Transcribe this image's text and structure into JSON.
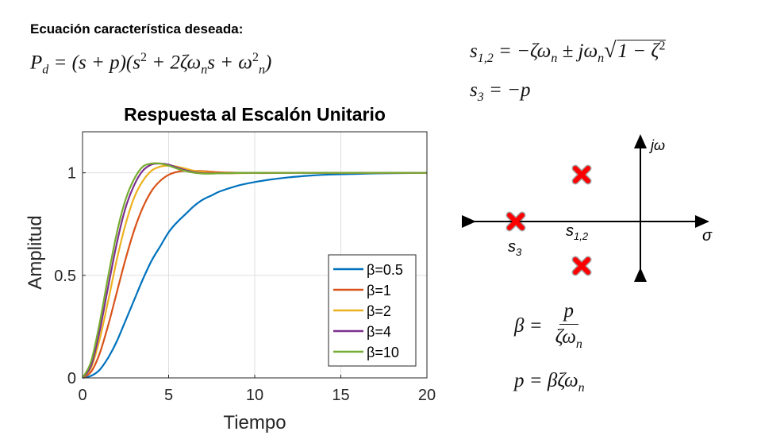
{
  "heading": "Ecuación característica deseada:",
  "equations": {
    "pd_lhs": "P",
    "pd_sub": "d",
    "pd_rhs": " = (s + p)(s",
    "pd_rhs2": " + 2ζω",
    "pd_rhs3": "s + ω",
    "pd_close": ")",
    "s12_lhs": "s",
    "s12_sub": "1,2",
    "s12_rhs": " = −ζω",
    "s12_rhs2": " ± jω",
    "s12_sqrt": "1 − ζ",
    "s3_lhs": "s",
    "s3_sub": "3",
    "s3_rhs": " = −p",
    "beta_lhs": "β =",
    "beta_num": "p",
    "beta_den": "ζω",
    "p_eq": "p = βζω",
    "sup2": "2",
    "sub_n": "n"
  },
  "pole_zero": {
    "jw_label": "jω",
    "sigma_label": "σ",
    "s3_label": "s",
    "s3_sub": "3",
    "s12_label": "s",
    "s12_sub": "1,2",
    "marker_color": "#ff0000"
  },
  "chart_data": {
    "type": "line",
    "title": "Respuesta al Escalón Unitario",
    "xlabel": "Tiempo",
    "ylabel": "Amplitud",
    "xlim": [
      0,
      20
    ],
    "ylim": [
      0,
      1.2
    ],
    "xticks": [
      0,
      5,
      10,
      15,
      20
    ],
    "yticks": [
      0,
      0.5,
      1
    ],
    "ytick_labels": [
      "0",
      "0.5",
      "1"
    ],
    "grid": true,
    "legend_position": "lower-right",
    "x": [
      0,
      0.5,
      1,
      1.5,
      2,
      2.5,
      3,
      3.5,
      4,
      4.5,
      5,
      5.5,
      6,
      6.5,
      7,
      7.5,
      8,
      9,
      10,
      11,
      12,
      13,
      14,
      15,
      16,
      17,
      18,
      19,
      20
    ],
    "series": [
      {
        "name": "β=0.5",
        "color": "#0072BD",
        "values": [
          0,
          0.01,
          0.04,
          0.1,
          0.18,
          0.28,
          0.38,
          0.48,
          0.57,
          0.64,
          0.71,
          0.76,
          0.8,
          0.84,
          0.87,
          0.89,
          0.91,
          0.937,
          0.955,
          0.968,
          0.978,
          0.985,
          0.99,
          0.993,
          0.995,
          0.997,
          0.998,
          0.999,
          1.0
        ]
      },
      {
        "name": "β=1",
        "color": "#D95319",
        "values": [
          0,
          0.03,
          0.12,
          0.26,
          0.42,
          0.58,
          0.72,
          0.83,
          0.91,
          0.96,
          0.99,
          1.005,
          1.01,
          1.01,
          1.008,
          1.005,
          1.002,
          1.0,
          0.999,
          0.999,
          1.0,
          1.0,
          1.0,
          1.0,
          1.0,
          1.0,
          1.0,
          1.0,
          1.0
        ]
      },
      {
        "name": "β=2",
        "color": "#EDB120",
        "values": [
          0,
          0.05,
          0.19,
          0.38,
          0.58,
          0.75,
          0.88,
          0.96,
          1.01,
          1.03,
          1.035,
          1.03,
          1.02,
          1.01,
          1.004,
          1.0,
          0.998,
          0.998,
          0.999,
          1.0,
          1.0,
          1.0,
          1.0,
          1.0,
          1.0,
          1.0,
          1.0,
          1.0,
          1.0
        ]
      },
      {
        "name": "β=4",
        "color": "#7E2F8E",
        "values": [
          0,
          0.06,
          0.23,
          0.45,
          0.66,
          0.83,
          0.94,
          1.01,
          1.04,
          1.045,
          1.04,
          1.025,
          1.012,
          1.003,
          0.998,
          0.997,
          0.998,
          0.999,
          1.0,
          1.0,
          1.0,
          1.0,
          1.0,
          1.0,
          1.0,
          1.0,
          1.0,
          1.0,
          1.0
        ]
      },
      {
        "name": "β=10",
        "color": "#77AC30",
        "values": [
          0,
          0.08,
          0.27,
          0.5,
          0.71,
          0.87,
          0.97,
          1.03,
          1.045,
          1.045,
          1.035,
          1.02,
          1.008,
          1.0,
          0.996,
          0.996,
          0.998,
          0.999,
          1.0,
          1.0,
          1.0,
          1.0,
          1.0,
          1.0,
          1.0,
          1.0,
          1.0,
          1.0,
          1.0
        ]
      }
    ]
  }
}
